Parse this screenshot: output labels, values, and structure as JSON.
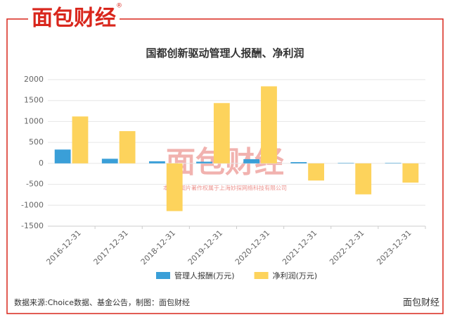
{
  "header": {
    "logo": "面包财经",
    "mark": "®"
  },
  "chart_data": {
    "type": "bar",
    "title": "国都创新驱动管理人报酬、净利润",
    "categories": [
      "2016-12-31",
      "2017-12-31",
      "2018-12-31",
      "2019-12-31",
      "2020-12-31",
      "2021-12-31",
      "2022-12-31",
      "2023-12-31"
    ],
    "series": [
      {
        "name": "管理人报酬(万元)",
        "color": "#3a9fd8",
        "values": [
          330,
          110,
          50,
          40,
          100,
          30,
          10,
          10
        ]
      },
      {
        "name": "净利润(万元)",
        "color": "#fdd35c",
        "values": [
          1120,
          770,
          -1140,
          1440,
          1840,
          -410,
          -740,
          -460
        ]
      }
    ],
    "ylim": [
      -1500,
      2000
    ],
    "yticks": [
      -1500,
      -1000,
      -500,
      0,
      500,
      1000,
      1500,
      2000
    ],
    "grid": true,
    "legend": "bottom",
    "watermark": "本图表图片著作权属于上海妙探网络科技有限公司"
  },
  "footer": {
    "source": "数据来源:Choice数据、基金公告，制图：面包财经",
    "brand": "面包财经"
  }
}
